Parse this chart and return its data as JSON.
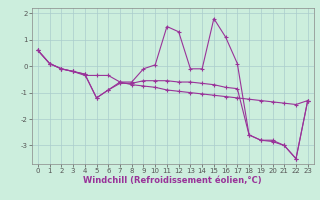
{
  "xlabel": "Windchill (Refroidissement éolien,°C)",
  "background_color": "#cceedd",
  "line_color": "#993399",
  "x_data": [
    0,
    1,
    2,
    3,
    4,
    5,
    6,
    7,
    8,
    9,
    10,
    11,
    12,
    13,
    14,
    15,
    16,
    17,
    18,
    19,
    20,
    21,
    22,
    23
  ],
  "line1": [
    0.6,
    0.1,
    -0.1,
    -0.2,
    -0.3,
    -1.2,
    -0.9,
    -0.6,
    -0.6,
    -0.1,
    0.05,
    1.5,
    1.3,
    -0.1,
    -0.1,
    1.8,
    1.1,
    0.1,
    -2.6,
    -2.8,
    -2.8,
    -3.0,
    -3.5,
    -1.3
  ],
  "line2": [
    0.6,
    0.1,
    -0.1,
    -0.2,
    -0.3,
    -1.2,
    -0.9,
    -0.65,
    -0.65,
    -0.55,
    -0.55,
    -0.55,
    -0.6,
    -0.6,
    -0.65,
    -0.7,
    -0.8,
    -0.85,
    -2.6,
    -2.8,
    -2.85,
    -3.0,
    -3.5,
    -1.3
  ],
  "line3": [
    0.6,
    0.1,
    -0.1,
    -0.2,
    -0.35,
    -0.35,
    -0.35,
    -0.6,
    -0.7,
    -0.75,
    -0.8,
    -0.9,
    -0.95,
    -1.0,
    -1.05,
    -1.1,
    -1.15,
    -1.2,
    -1.25,
    -1.3,
    -1.35,
    -1.4,
    -1.45,
    -1.3
  ],
  "ylim": [
    -3.7,
    2.2
  ],
  "xlim": [
    -0.5,
    23.5
  ],
  "yticks": [
    -3,
    -2,
    -1,
    0,
    1,
    2
  ],
  "xticks": [
    0,
    1,
    2,
    3,
    4,
    5,
    6,
    7,
    8,
    9,
    10,
    11,
    12,
    13,
    14,
    15,
    16,
    17,
    18,
    19,
    20,
    21,
    22,
    23
  ],
  "marker": "+",
  "markersize": 3,
  "linewidth": 0.8,
  "tick_fontsize": 5.0,
  "xlabel_fontsize": 6.0,
  "grid_color": "#aacccc",
  "spine_color": "#888888"
}
